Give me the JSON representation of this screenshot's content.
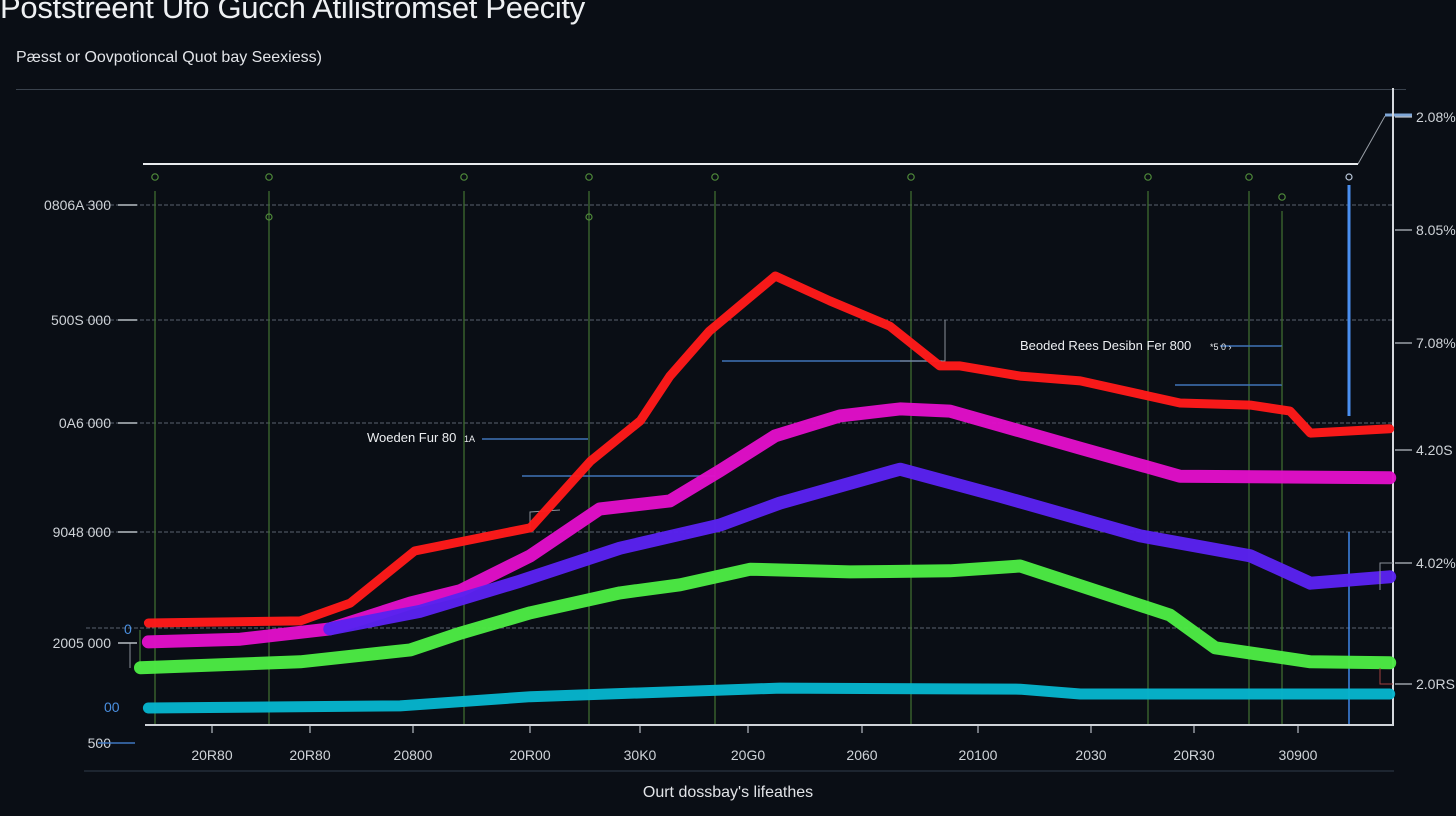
{
  "chart_data": {
    "type": "line",
    "title": "Poststreent Ufo Gucch Atilistromset Peecity",
    "subtitle": "Pæsst or Oovpotioncal Quot bay Seexiess)",
    "xlabel": "Ourt dossbay's lifeathes",
    "ylabel": "",
    "x_tick_labels": [
      "20R80",
      "20R80",
      "20800",
      "20R00",
      "30K0",
      "20G0",
      "2060",
      "20100",
      "2030",
      "20R30",
      "30900"
    ],
    "y_left_tick_labels": [
      "0806A 300",
      "500S 000",
      "0A6 000",
      "9048 000",
      "2005 000",
      "00",
      "500"
    ],
    "y_right_tick_labels": [
      "2.08%",
      "8.05%",
      "7.08%",
      "4.20S",
      "4.02%",
      "2.0RS"
    ],
    "xlim": [
      0,
      11
    ],
    "ylim": [
      0,
      100
    ],
    "grid": true,
    "annotations": [
      {
        "text": "Woeden Fur 80",
        "suffix": "1A"
      },
      {
        "text": "Beoded Rees Desibn Fer 800",
        "suffix": "*5 0 ›"
      }
    ],
    "markers_left": [
      "0",
      "00"
    ],
    "series": [
      {
        "name": "Red",
        "color": "#ff1a1a",
        "x": [
          0.03,
          1.37,
          1.81,
          2.38,
          3.4,
          3.93,
          4.37,
          4.63,
          4.98,
          5.56,
          6.04,
          6.57,
          7.01,
          7.19,
          7.72,
          8.25,
          9.13,
          9.75,
          10.1,
          10.28,
          10.98
        ],
        "y": [
          22.3,
          22.7,
          26.0,
          35.7,
          40.0,
          52.4,
          59.9,
          68.2,
          76.6,
          86.8,
          82.2,
          77.5,
          70.1,
          70.1,
          68.2,
          67.3,
          63.2,
          62.8,
          61.7,
          57.6,
          58.4
        ]
      },
      {
        "name": "Magenta",
        "color": "#e010c8",
        "x": [
          0.03,
          0.84,
          1.63,
          2.34,
          2.78,
          3.4,
          4.01,
          4.63,
          5.07,
          5.56,
          6.13,
          6.66,
          7.1,
          8.25,
          9.13,
          10.98
        ],
        "y": [
          18.8,
          19.3,
          21.2,
          26.0,
          28.3,
          34.8,
          43.5,
          45.0,
          50.6,
          57.1,
          60.8,
          62.1,
          61.7,
          54.8,
          49.6,
          49.3
        ]
      },
      {
        "name": "Purple",
        "color": "#5a22f0",
        "x": [
          1.63,
          2.43,
          3.31,
          4.19,
          5.07,
          5.6,
          6.66,
          7.54,
          8.78,
          9.75,
          10.28,
          10.98
        ],
        "y": [
          21.2,
          24.5,
          30.1,
          36.2,
          40.5,
          44.6,
          50.9,
          45.9,
          38.5,
          34.8,
          29.7,
          30.9
        ]
      },
      {
        "name": "Green",
        "color": "#4cea44",
        "x": [
          -0.04,
          1.37,
          2.34,
          2.78,
          3.4,
          4.19,
          4.72,
          5.34,
          6.22,
          7.1,
          7.72,
          9.04,
          9.44,
          10.28,
          10.98
        ],
        "y": [
          14.0,
          15.1,
          17.3,
          20.4,
          24.2,
          27.9,
          29.4,
          32.3,
          31.8,
          32.0,
          32.9,
          23.8,
          17.7,
          15.1,
          14.9
        ]
      },
      {
        "name": "Cyan",
        "color": "#06b4cc",
        "x": [
          0.03,
          2.25,
          3.4,
          5.6,
          7.72,
          8.25,
          10.98
        ],
        "y": [
          6.5,
          6.9,
          8.6,
          10.2,
          10.0,
          9.1,
          9.1
        ]
      }
    ]
  }
}
